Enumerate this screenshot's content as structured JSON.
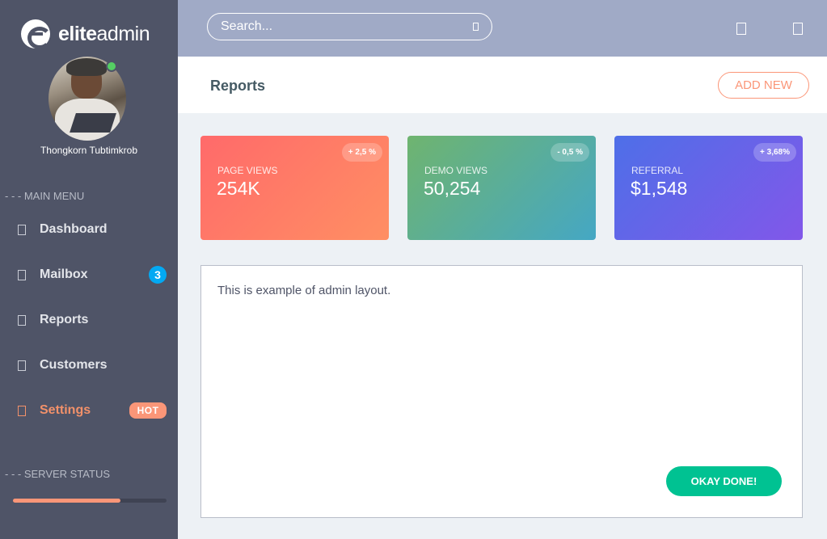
{
  "brand": {
    "bold": "elite",
    "light": "admin"
  },
  "user": {
    "name": "Thongkorn Tubtimkrob",
    "status": "online"
  },
  "sidebar": {
    "main_menu_label": "- - - MAIN MENU",
    "server_status_label": "- - - SERVER STATUS",
    "server_status_progress": 0.7,
    "items": [
      {
        "label": "Dashboard",
        "icon": "dashboard-icon"
      },
      {
        "label": "Mailbox",
        "icon": "mailbox-icon",
        "badge": "3"
      },
      {
        "label": "Reports",
        "icon": "reports-icon"
      },
      {
        "label": "Customers",
        "icon": "customers-icon"
      },
      {
        "label": "Settings",
        "icon": "settings-icon",
        "badge": "HOT",
        "active": true
      }
    ]
  },
  "topbar": {
    "search_placeholder": "Search...",
    "icons": [
      "search-icon",
      "notification-icon",
      "user-menu-icon"
    ]
  },
  "page": {
    "title": "Reports",
    "add_new_label": "ADD NEW"
  },
  "cards": [
    {
      "label": "PAGE VIEWS",
      "value": "254K",
      "change": "+ 2,5 %"
    },
    {
      "label": "DEMO VIEWS",
      "value": "50,254",
      "change": "- 0,5 %"
    },
    {
      "label": "REFERRAL",
      "value": "$1,548",
      "change": "+ 3,68%"
    }
  ],
  "panel": {
    "text": "This is example of admin layout.",
    "button_label": "OKAY DONE!"
  },
  "colors": {
    "sidebar_bg": "#4f5467",
    "topbar_bg": "#a0aac6",
    "accent_orange": "#fb9678",
    "accent_green": "#00c292",
    "badge_blue": "#03a9f3",
    "online_green": "#55ce63"
  }
}
